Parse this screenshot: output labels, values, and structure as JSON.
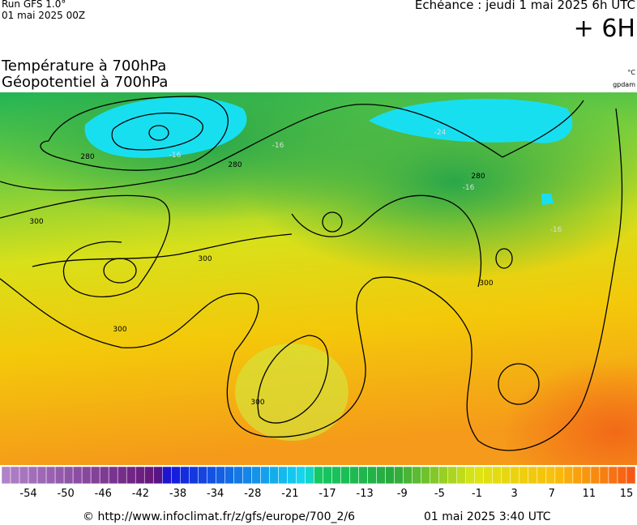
{
  "header": {
    "run": "Run GFS 1.0°",
    "run_date": "01 mai 2025 00Z",
    "forecast": "Echéance : jeudi 1 mai 2025 6h UTC",
    "lead": "+ 6H"
  },
  "titles": {
    "temperature": "Température à 700hPa",
    "geopotential": "Géopotentiel à 700hPa",
    "temp_unit": "°C",
    "geo_unit": "gpdam"
  },
  "map": {
    "contour_labels": [
      "280",
      "280",
      "280",
      "300",
      "300",
      "300",
      "300",
      "300",
      "-16",
      "-16",
      "-16",
      "-16",
      "-24"
    ]
  },
  "scale": {
    "labels": [
      -54,
      -50,
      -46,
      -42,
      -38,
      -34,
      -28,
      -21,
      -17,
      -13,
      -9,
      -5,
      -1,
      3,
      7,
      11,
      15
    ]
  },
  "footer": {
    "source": "© http://www.infoclimat.fr/z/gfs/europe/700_2/6",
    "generated": "01 mai 2025  3:40 UTC"
  }
}
